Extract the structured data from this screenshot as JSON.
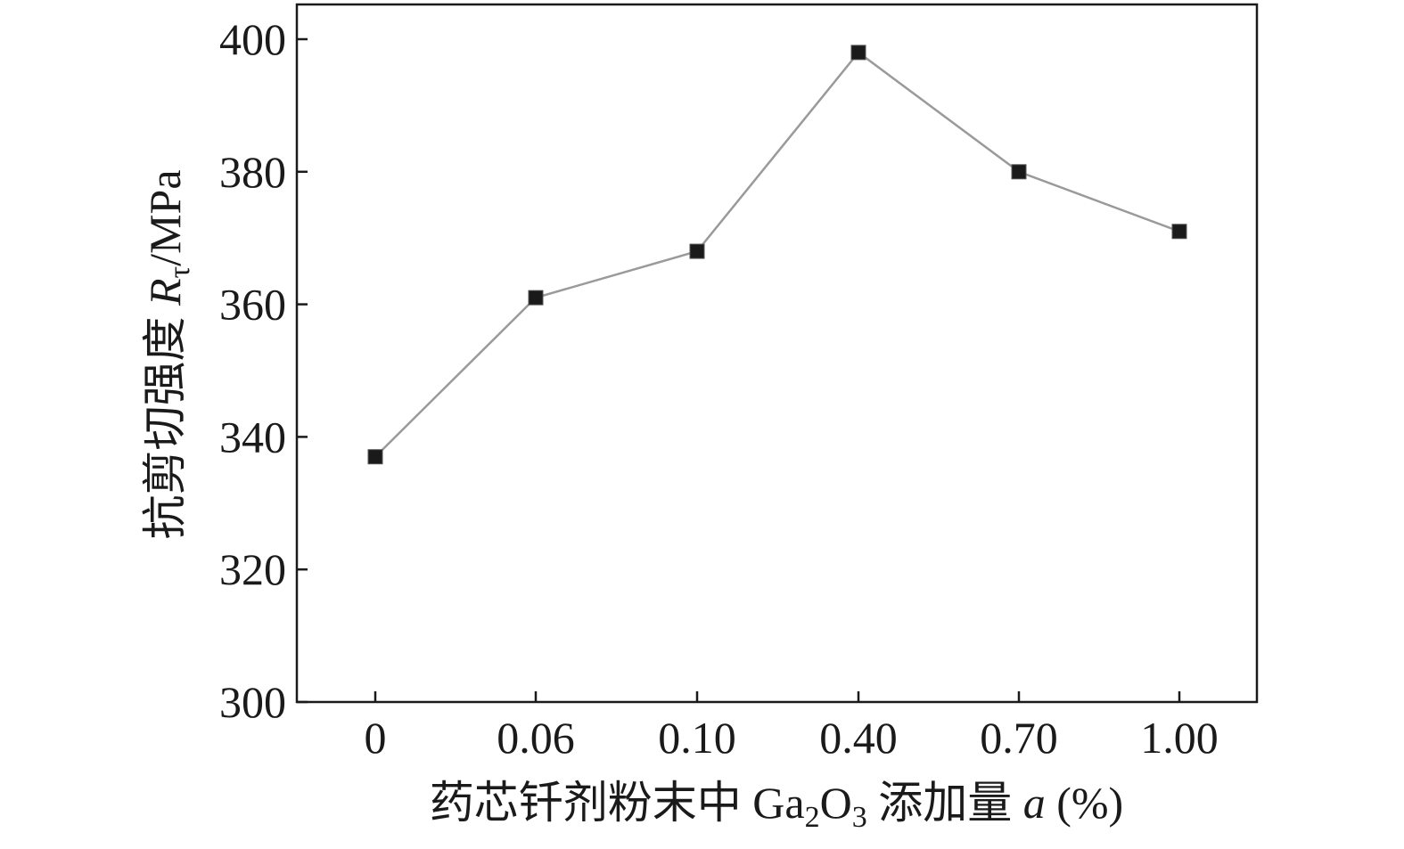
{
  "chart_data": {
    "type": "line",
    "categories": [
      "0",
      "0.06",
      "0.10",
      "0.40",
      "0.70",
      "1.00"
    ],
    "series": [
      {
        "values": [
          337,
          361,
          368,
          398,
          380,
          371
        ]
      }
    ],
    "xlabel": {
      "prefix": "药芯钎剂粉末中 Ga",
      "sub1": "2",
      "mid": "O",
      "sub2": "3",
      "after": " 添加量 ",
      "var": "a",
      "unit": " (%)"
    },
    "ylabel": {
      "prefix": "抗剪切强度 ",
      "var": "R",
      "sub": "τ",
      "unit": "/MPa"
    },
    "yticks": [
      "300",
      "320",
      "340",
      "360",
      "380",
      "400"
    ],
    "ylim": [
      300,
      405
    ],
    "grid": false,
    "colors": {
      "line": "#9a9a9a",
      "marker": "#1a1a1a",
      "axis": "#1a1a1a"
    }
  }
}
